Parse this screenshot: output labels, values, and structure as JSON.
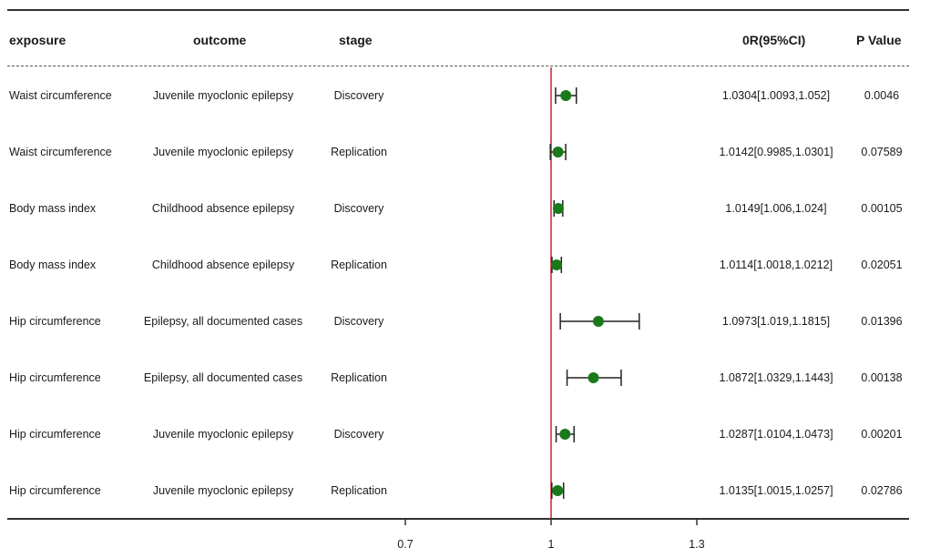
{
  "header": {
    "exposure": "exposure",
    "outcome": "outcome",
    "stage": "stage",
    "or": "0R(95%CI)",
    "pvalue": "P Value"
  },
  "chart_data": {
    "type": "forest",
    "reference_line": 1,
    "xlim": [
      0.7,
      1.3
    ],
    "xticks": [
      "0.7",
      "1",
      "1.3"
    ],
    "marker_color": "#1a7a1a",
    "reference_color": "#cc2233",
    "rows": [
      {
        "exposure": "Waist circumference",
        "outcome": "Juvenile myoclonic epilepsy",
        "stage": "Discovery",
        "or": 1.0304,
        "lo": 1.0093,
        "hi": 1.052,
        "or_text": "1.0304[1.0093,1.052]",
        "p": "0.0046"
      },
      {
        "exposure": "Waist circumference",
        "outcome": "Juvenile myoclonic epilepsy",
        "stage": "Replication",
        "or": 1.0142,
        "lo": 0.9985,
        "hi": 1.0301,
        "or_text": "1.0142[0.9985,1.0301]",
        "p": "0.07589"
      },
      {
        "exposure": "Body mass index",
        "outcome": "Childhood absence epilepsy",
        "stage": "Discovery",
        "or": 1.0149,
        "lo": 1.006,
        "hi": 1.024,
        "or_text": "1.0149[1.006,1.024]",
        "p": "0.00105"
      },
      {
        "exposure": "Body mass index",
        "outcome": "Childhood absence epilepsy",
        "stage": "Replication",
        "or": 1.0114,
        "lo": 1.0018,
        "hi": 1.0212,
        "or_text": "1.0114[1.0018,1.0212]",
        "p": "0.02051"
      },
      {
        "exposure": "Hip circumference",
        "outcome": "Epilepsy, all documented cases",
        "stage": "Discovery",
        "or": 1.0973,
        "lo": 1.019,
        "hi": 1.1815,
        "or_text": "1.0973[1.019,1.1815]",
        "p": "0.01396"
      },
      {
        "exposure": "Hip circumference",
        "outcome": "Epilepsy, all documented cases",
        "stage": "Replication",
        "or": 1.0872,
        "lo": 1.0329,
        "hi": 1.1443,
        "or_text": "1.0872[1.0329,1.1443]",
        "p": "0.00138"
      },
      {
        "exposure": "Hip circumference",
        "outcome": "Juvenile myoclonic epilepsy",
        "stage": "Discovery",
        "or": 1.0287,
        "lo": 1.0104,
        "hi": 1.0473,
        "or_text": "1.0287[1.0104,1.0473]",
        "p": "0.00201"
      },
      {
        "exposure": "Hip circumference",
        "outcome": "Juvenile myoclonic epilepsy",
        "stage": "Replication",
        "or": 1.0135,
        "lo": 1.0015,
        "hi": 1.0257,
        "or_text": "1.0135[1.0015,1.0257]",
        "p": "0.02786"
      }
    ]
  }
}
